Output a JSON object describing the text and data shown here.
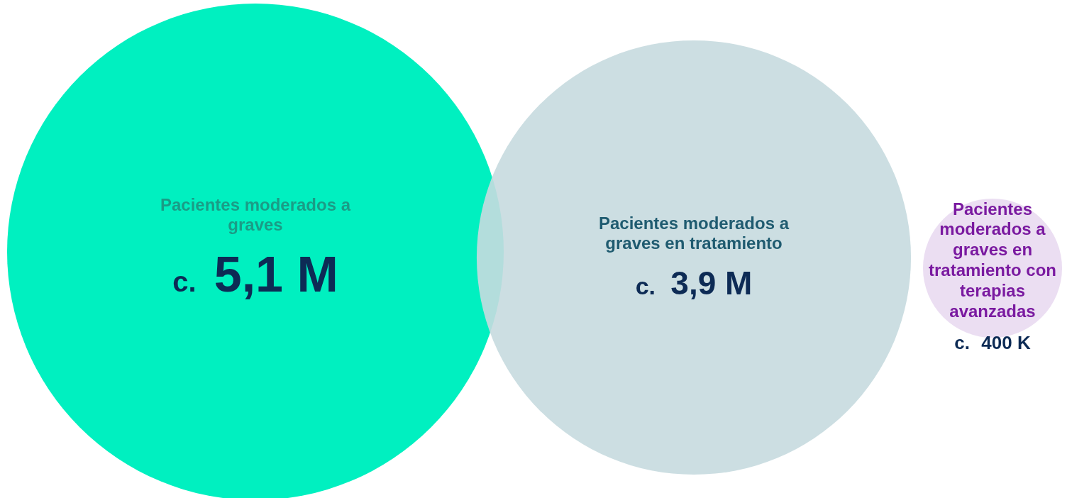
{
  "chart_data": {
    "type": "other",
    "categories": [
      "Pacientes moderados a graves",
      "Pacientes moderados a graves en tratamiento",
      "Pacientes moderados a graves en tratamiento con terapias avanzadas"
    ],
    "values": [
      5100000,
      3900000,
      400000
    ],
    "value_labels": [
      "c. 5,1 M",
      "c. 3,9 M",
      "c. 400 K"
    ],
    "colors": [
      "#00f0c0",
      "#c6dadf",
      "#e8d8f0"
    ]
  }
}
